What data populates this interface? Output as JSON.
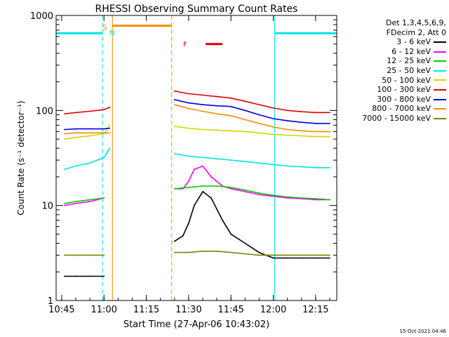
{
  "chart_data": {
    "type": "line",
    "title": "RHESSI Observing Summary Count Rates",
    "xlabel": "Start Time (27-Apr-06 10:43:02)",
    "ylabel": "Count Rate (s⁻¹ detector⁻¹)",
    "y_scale": "log",
    "ylim": [
      1,
      1000
    ],
    "xlim": [
      "10:43:02",
      "12:22:30"
    ],
    "x_ticks": [
      "10:45",
      "11:00",
      "11:15",
      "11:30",
      "11:45",
      "12:00",
      "12:15"
    ],
    "y_ticks": [
      "1",
      "10",
      "100",
      "1000"
    ],
    "legend_header": [
      "Det 1,3,4,5,6,9,",
      "FDecim 2, Att 0"
    ],
    "legend_position": "right",
    "series": [
      {
        "name": "3 - 6 keV",
        "color": "#000000",
        "x": [
          "10:46",
          "10:50",
          "10:55",
          "11:00",
          "11:25",
          "11:28",
          "11:30",
          "11:32",
          "11:35",
          "11:38",
          "11:42",
          "11:45",
          "11:50",
          "11:55",
          "12:00",
          "12:05",
          "12:10",
          "12:15",
          "12:20"
        ],
        "values": [
          1.8,
          1.8,
          1.8,
          1.8,
          4.2,
          4.8,
          6.5,
          10,
          14,
          12,
          7,
          5,
          4,
          3.2,
          2.8,
          2.8,
          2.8,
          2.8,
          2.8
        ]
      },
      {
        "name": "6 - 12 keV",
        "color": "#ff00ff",
        "x": [
          "10:46",
          "10:50",
          "10:55",
          "11:00",
          "11:25",
          "11:28",
          "11:30",
          "11:32",
          "11:35",
          "11:38",
          "11:42",
          "11:45",
          "11:50",
          "11:55",
          "12:00",
          "12:05",
          "12:10",
          "12:15",
          "12:20"
        ],
        "values": [
          10,
          10.5,
          11,
          12,
          15,
          15,
          18,
          24,
          26,
          20,
          16,
          15,
          14,
          13,
          12.5,
          12,
          11.8,
          11.5,
          11.5
        ]
      },
      {
        "name": "12 - 25 keV",
        "color": "#00cc00",
        "x": [
          "10:46",
          "10:50",
          "10:55",
          "11:00",
          "11:25",
          "11:30",
          "11:35",
          "11:40",
          "11:45",
          "11:50",
          "11:55",
          "12:00",
          "12:05",
          "12:10",
          "12:15",
          "12:20"
        ],
        "values": [
          10.5,
          11,
          11.5,
          12,
          15,
          15.5,
          16,
          16,
          15.5,
          14.5,
          13.5,
          12.8,
          12.3,
          12,
          11.8,
          11.5
        ]
      },
      {
        "name": "25 - 50 keV",
        "color": "#00e5e5",
        "x": [
          "10:46",
          "10:50",
          "10:55",
          "11:00",
          "11:02",
          "11:25",
          "11:30",
          "11:35",
          "11:40",
          "11:45",
          "11:50",
          "11:55",
          "12:00",
          "12:05",
          "12:10",
          "12:15",
          "12:20"
        ],
        "values": [
          24,
          26,
          28,
          32,
          40,
          35,
          33,
          32,
          31,
          30,
          29,
          28,
          27,
          26,
          25.5,
          25,
          25
        ]
      },
      {
        "name": "50 - 100 keV",
        "color": "#d4d400",
        "x": [
          "10:46",
          "10:50",
          "10:55",
          "11:00",
          "11:02",
          "11:25",
          "11:30",
          "11:35",
          "11:40",
          "11:45",
          "11:50",
          "11:55",
          "12:00",
          "12:05",
          "12:10",
          "12:15",
          "12:20"
        ],
        "values": [
          50,
          52,
          54,
          57,
          70,
          68,
          65,
          63,
          62,
          61,
          60,
          58,
          56,
          55,
          54,
          53,
          53
        ]
      },
      {
        "name": "100 - 300 keV",
        "color": "#e00000",
        "x": [
          "10:46",
          "10:50",
          "10:55",
          "11:00",
          "11:02",
          "11:25",
          "11:30",
          "11:35",
          "11:40",
          "11:45",
          "11:50",
          "11:55",
          "12:00",
          "12:05",
          "12:10",
          "12:15",
          "12:20"
        ],
        "values": [
          92,
          95,
          98,
          102,
          108,
          160,
          150,
          145,
          140,
          135,
          125,
          115,
          106,
          100,
          97,
          95,
          95
        ]
      },
      {
        "name": "300 - 800 keV",
        "color": "#0000e0",
        "x": [
          "10:46",
          "10:50",
          "10:55",
          "11:00",
          "11:02",
          "11:25",
          "11:30",
          "11:35",
          "11:40",
          "11:45",
          "11:50",
          "11:55",
          "12:00",
          "12:05",
          "12:10",
          "12:15",
          "12:20"
        ],
        "values": [
          63,
          64,
          64,
          64,
          65,
          130,
          120,
          115,
          112,
          110,
          100,
          90,
          82,
          78,
          75,
          73,
          73
        ]
      },
      {
        "name": "800 - 7000 keV",
        "color": "#ff8c00",
        "x": [
          "10:46",
          "10:50",
          "10:55",
          "11:00",
          "11:02",
          "11:25",
          "11:30",
          "11:35",
          "11:40",
          "11:45",
          "11:50",
          "11:55",
          "12:00",
          "12:05",
          "12:10",
          "12:15",
          "12:20"
        ],
        "values": [
          57,
          58,
          58,
          58,
          58,
          115,
          105,
          98,
          92,
          88,
          80,
          73,
          67,
          63,
          61,
          60,
          60
        ]
      },
      {
        "name": "7000 - 15000 keV",
        "color": "#808000",
        "x": [
          "10:46",
          "10:50",
          "10:55",
          "11:00",
          "11:25",
          "11:30",
          "11:35",
          "11:40",
          "11:45",
          "11:50",
          "11:55",
          "12:00",
          "12:05",
          "12:10",
          "12:15",
          "12:20"
        ],
        "values": [
          3,
          3,
          3,
          3,
          3.2,
          3.2,
          3.3,
          3.3,
          3.2,
          3.1,
          3,
          3,
          3,
          3,
          3,
          3
        ]
      }
    ],
    "annotations": [
      {
        "text": "S",
        "color": "#ff8c00",
        "x": "11:01"
      },
      {
        "text": "N",
        "color": "#00e5e5",
        "x": "11:01"
      },
      {
        "text": "F",
        "color": "#e00000",
        "x": "11:33"
      }
    ],
    "intervals": [
      {
        "kind": "night",
        "color": "#00e5e5",
        "from": "10:43:02",
        "to": "10:59:30",
        "level": 650
      },
      {
        "kind": "night",
        "color": "#00e5e5",
        "from": "12:00:30",
        "to": "12:22:30",
        "level": 650
      },
      {
        "kind": "saa",
        "color": "#ff8c00",
        "from": "11:03",
        "to": "11:24",
        "level": 780
      },
      {
        "kind": "flare",
        "color": "#e00000",
        "from": "11:36",
        "to": "11:42",
        "level": 500
      }
    ]
  },
  "footer": {
    "timestamp": "15-Oct-2021 04:46"
  }
}
